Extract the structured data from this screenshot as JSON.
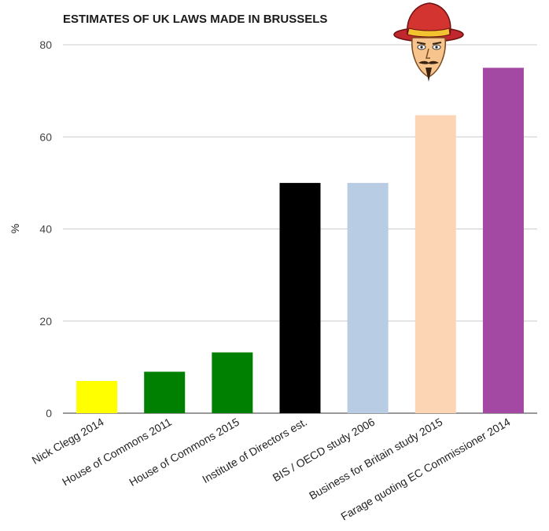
{
  "chart_data": {
    "type": "bar",
    "title": "ESTIMATES OF UK LAWS MADE IN BRUSSELS",
    "xlabel": "",
    "ylabel": "%",
    "ylim": [
      0,
      80
    ],
    "yticks": [
      0,
      20,
      40,
      60,
      80
    ],
    "grid": true,
    "legend": "none",
    "categories": [
      "Nick Clegg 2014",
      "House of Commons 2011",
      "House of Commons 2015",
      "Institute of Directors est.",
      "BIS / OECD study 2006",
      "Business for Britain study 2015",
      "Farage quoting EC Commissioner 2014"
    ],
    "values": [
      7,
      9,
      13.2,
      50,
      50,
      64.7,
      75
    ],
    "colors": [
      "#ffff00",
      "#008000",
      "#008000",
      "#000000",
      "#b8cce4",
      "#fcd5b5",
      "#a349a4"
    ]
  },
  "illustration": {
    "icon": "jester-cartoon-icon"
  }
}
